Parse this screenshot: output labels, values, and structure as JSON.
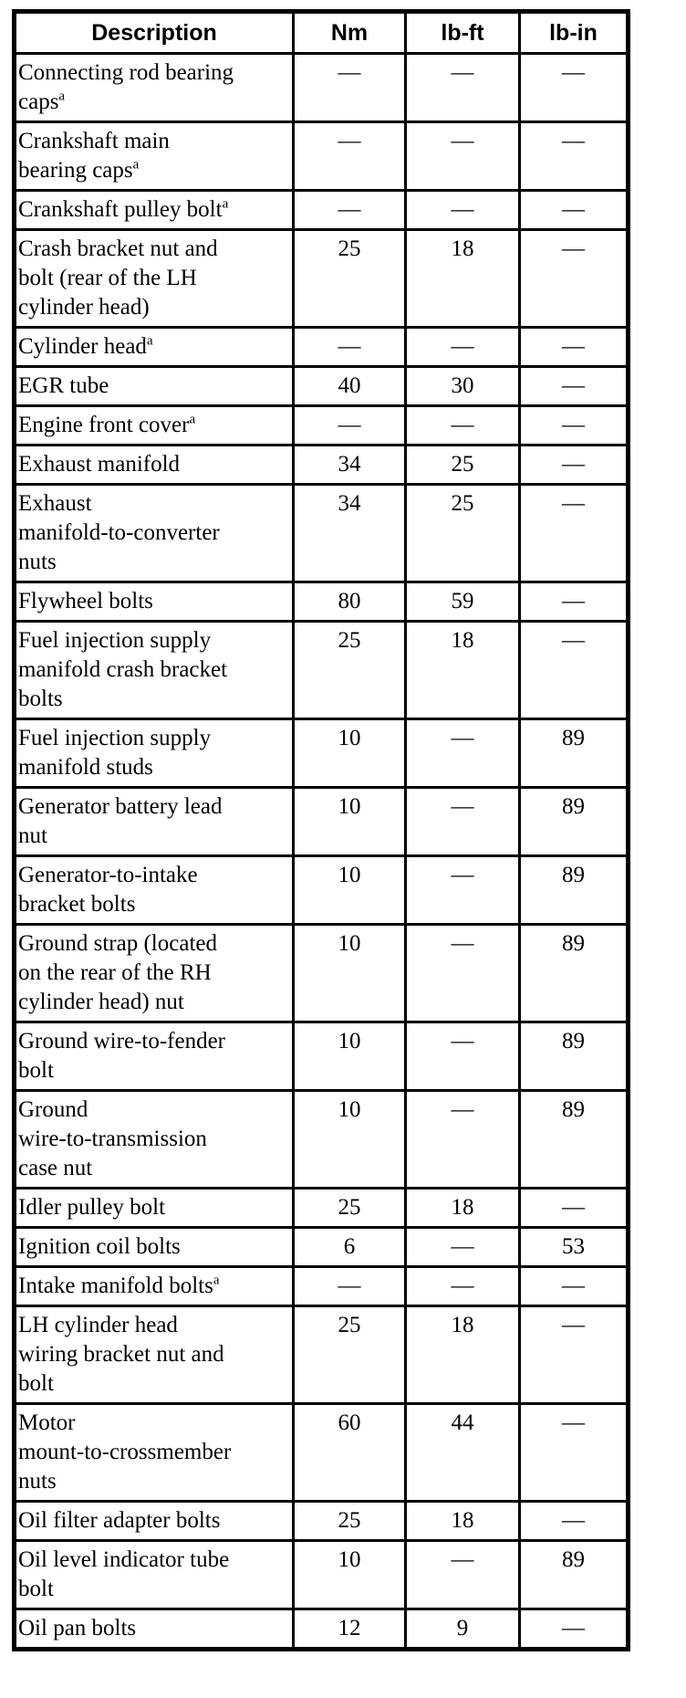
{
  "table": {
    "headers": [
      "Description",
      "Nm",
      "lb-ft",
      "lb-in"
    ],
    "rows": [
      {
        "desc": "Connecting rod bearing\ncaps",
        "sup": "a",
        "nm": "—",
        "lbft": "—",
        "lbin": "—"
      },
      {
        "desc": "Crankshaft main\nbearing caps",
        "sup": "a",
        "nm": "—",
        "lbft": "—",
        "lbin": "—"
      },
      {
        "desc": "Crankshaft pulley bolt",
        "sup": "a",
        "nm": "—",
        "lbft": "—",
        "lbin": "—"
      },
      {
        "desc": "Crash bracket nut and\nbolt (rear of the LH\ncylinder head)",
        "sup": "",
        "nm": "25",
        "lbft": "18",
        "lbin": "—"
      },
      {
        "desc": "Cylinder head",
        "sup": "a",
        "nm": "—",
        "lbft": "—",
        "lbin": "—"
      },
      {
        "desc": "EGR tube",
        "sup": "",
        "nm": "40",
        "lbft": "30",
        "lbin": "—"
      },
      {
        "desc": "Engine front cover",
        "sup": "a",
        "nm": "—",
        "lbft": "—",
        "lbin": "—"
      },
      {
        "desc": "Exhaust manifold",
        "sup": "",
        "nm": "34",
        "lbft": "25",
        "lbin": "—"
      },
      {
        "desc": "Exhaust\nmanifold-to-converter\nnuts",
        "sup": "",
        "nm": "34",
        "lbft": "25",
        "lbin": "—"
      },
      {
        "desc": "Flywheel bolts",
        "sup": "",
        "nm": "80",
        "lbft": "59",
        "lbin": "—"
      },
      {
        "desc": "Fuel injection supply\nmanifold crash bracket\nbolts",
        "sup": "",
        "nm": "25",
        "lbft": "18",
        "lbin": "—"
      },
      {
        "desc": "Fuel injection supply\nmanifold studs",
        "sup": "",
        "nm": "10",
        "lbft": "—",
        "lbin": "89"
      },
      {
        "desc": "Generator battery lead\nnut",
        "sup": "",
        "nm": "10",
        "lbft": "—",
        "lbin": "89"
      },
      {
        "desc": "Generator-to-intake\nbracket bolts",
        "sup": "",
        "nm": "10",
        "lbft": "—",
        "lbin": "89"
      },
      {
        "desc": "Ground strap (located\non the rear of the RH\ncylinder head) nut",
        "sup": "",
        "nm": "10",
        "lbft": "—",
        "lbin": "89"
      },
      {
        "desc": "Ground wire-to-fender\nbolt",
        "sup": "",
        "nm": "10",
        "lbft": "—",
        "lbin": "89"
      },
      {
        "desc": "Ground\nwire-to-transmission\ncase nut",
        "sup": "",
        "nm": "10",
        "lbft": "—",
        "lbin": "89"
      },
      {
        "desc": "Idler pulley bolt",
        "sup": "",
        "nm": "25",
        "lbft": "18",
        "lbin": "—"
      },
      {
        "desc": "Ignition coil bolts",
        "sup": "",
        "nm": "6",
        "lbft": "—",
        "lbin": "53"
      },
      {
        "desc": "Intake manifold bolts",
        "sup": "a",
        "nm": "—",
        "lbft": "—",
        "lbin": "—"
      },
      {
        "desc": "LH cylinder head\nwiring bracket nut and\nbolt",
        "sup": "",
        "nm": "25",
        "lbft": "18",
        "lbin": "—"
      },
      {
        "desc": "Motor\nmount-to-crossmember\nnuts",
        "sup": "",
        "nm": "60",
        "lbft": "44",
        "lbin": "—"
      },
      {
        "desc": "Oil filter adapter bolts",
        "sup": "",
        "nm": "25",
        "lbft": "18",
        "lbin": "—"
      },
      {
        "desc": "Oil level indicator tube\nbolt",
        "sup": "",
        "nm": "10",
        "lbft": "—",
        "lbin": "89"
      },
      {
        "desc": "Oil pan bolts",
        "sup": "",
        "nm": "12",
        "lbft": "9",
        "lbin": "—"
      }
    ]
  }
}
